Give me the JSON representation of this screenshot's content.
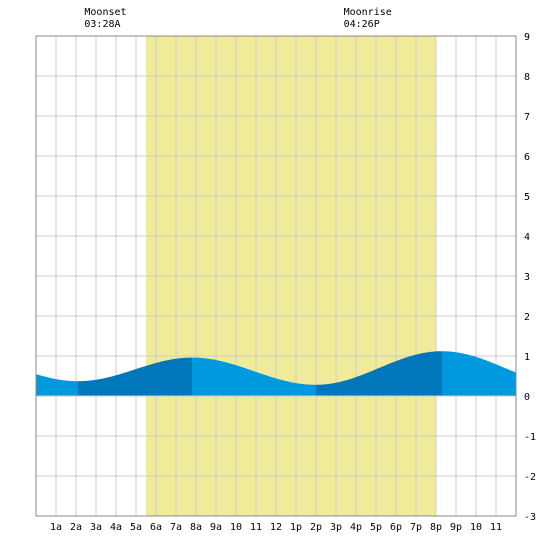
{
  "chart_data": {
    "type": "area",
    "title": "",
    "xlabel": "",
    "ylabel": "",
    "x_unit": "hour",
    "xlim": [
      0,
      24
    ],
    "ylim": [
      -3,
      9
    ],
    "grid": true,
    "legend": "none",
    "x_ticks": [
      {
        "x": 1,
        "label": "1a"
      },
      {
        "x": 2,
        "label": "2a"
      },
      {
        "x": 3,
        "label": "3a"
      },
      {
        "x": 4,
        "label": "4a"
      },
      {
        "x": 5,
        "label": "5a"
      },
      {
        "x": 6,
        "label": "6a"
      },
      {
        "x": 7,
        "label": "7a"
      },
      {
        "x": 8,
        "label": "8a"
      },
      {
        "x": 9,
        "label": "9a"
      },
      {
        "x": 10,
        "label": "10"
      },
      {
        "x": 11,
        "label": "11"
      },
      {
        "x": 12,
        "label": "12"
      },
      {
        "x": 13,
        "label": "1p"
      },
      {
        "x": 14,
        "label": "2p"
      },
      {
        "x": 15,
        "label": "3p"
      },
      {
        "x": 16,
        "label": "4p"
      },
      {
        "x": 17,
        "label": "5p"
      },
      {
        "x": 18,
        "label": "6p"
      },
      {
        "x": 19,
        "label": "7p"
      },
      {
        "x": 20,
        "label": "8p"
      },
      {
        "x": 21,
        "label": "9p"
      },
      {
        "x": 22,
        "label": "10"
      },
      {
        "x": 23,
        "label": "11"
      }
    ],
    "y_ticks": [
      -3,
      -2,
      -1,
      0,
      1,
      2,
      3,
      4,
      5,
      6,
      7,
      8,
      9
    ],
    "daylight": {
      "start": 5.5,
      "end": 20.0
    },
    "annotations": [
      {
        "label": "Moonset",
        "time": "03:28A",
        "x": 3.47
      },
      {
        "label": "Moonrise",
        "time": "04:26P",
        "x": 16.43
      }
    ],
    "extrema": [
      {
        "x": 2.1,
        "y": 0.37,
        "kind": "low"
      },
      {
        "x": 7.8,
        "y": 0.96,
        "kind": "high"
      },
      {
        "x": 14.0,
        "y": 0.28,
        "kind": "low"
      },
      {
        "x": 20.3,
        "y": 1.12,
        "kind": "high"
      }
    ],
    "series": [
      {
        "x": [
          0,
          2.1,
          7.8,
          14.0,
          20.3,
          24
        ],
        "y": [
          0.56,
          0.37,
          0.96,
          0.28,
          1.12,
          0.65
        ]
      }
    ],
    "colors": {
      "daylight": "#f0eb98",
      "grid": "#cccccc",
      "border": "#888888",
      "tide_light": "#0099dd",
      "tide_dark": "#0077bb"
    }
  }
}
